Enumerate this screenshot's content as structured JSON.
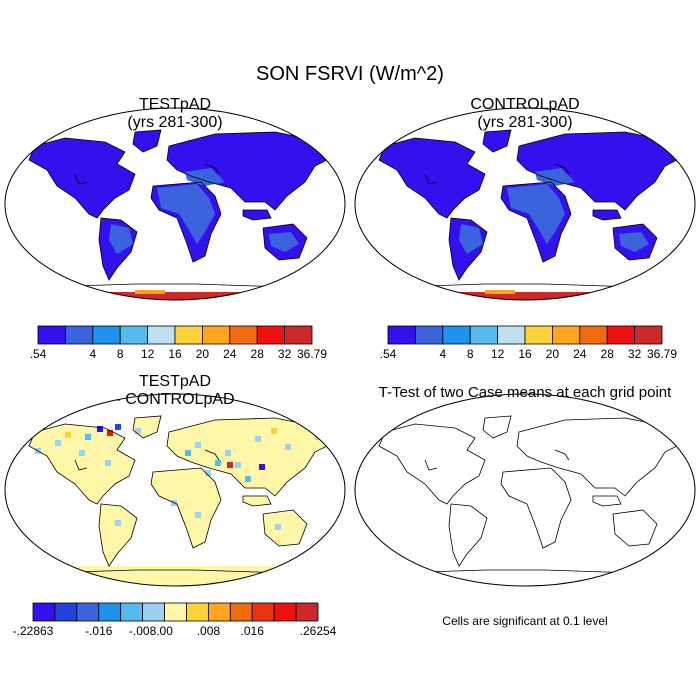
{
  "main_title": "SON FSRVI (W/m^2)",
  "panels": [
    {
      "title_line1": "TESTpAD",
      "title_line2": "(yrs 281-300)"
    },
    {
      "title_line1": "CONTROLpAD",
      "title_line2": "(yrs 281-300)"
    },
    {
      "title_line1": "TESTpAD",
      "title_line2": "- CONTROLpAD"
    },
    {
      "title_line1": "T-Test of two Case means at each grid point",
      "title_line2": ""
    }
  ],
  "colorbar_main": {
    "colors": [
      "#3311ee",
      "#3a63dd",
      "#1e93ee",
      "#55bbee",
      "#bfe0f2",
      "#ffd23c",
      "#ffa61e",
      "#f06a10",
      "#ee1111",
      "#cc2a2a"
    ],
    "labels": [
      ".54",
      "4",
      "8",
      "12",
      "16",
      "20",
      "24",
      "28",
      "32",
      "36.79"
    ]
  },
  "colorbar_diff": {
    "colors": [
      "#3311ee",
      "#2244dd",
      "#3a63dd",
      "#1e93ee",
      "#55bbee",
      "#9ad0f0",
      "#fff7a8",
      "#ffd23c",
      "#ffa61e",
      "#f06a10",
      "#ee3311",
      "#ee1111",
      "#cc2a2a"
    ],
    "labels": [
      "-.22863",
      "-.016",
      "-.008",
      ".00",
      ".008",
      ".016",
      ".26254"
    ]
  },
  "significance_note": "Cells are significant at 0.1 level",
  "colors": {
    "land_low": "#3311ee",
    "land_mid": "#3a63dd",
    "land_light": "#1e93ee",
    "antarctica": "#cc2a2a",
    "diff_land": "#fff7a8"
  }
}
